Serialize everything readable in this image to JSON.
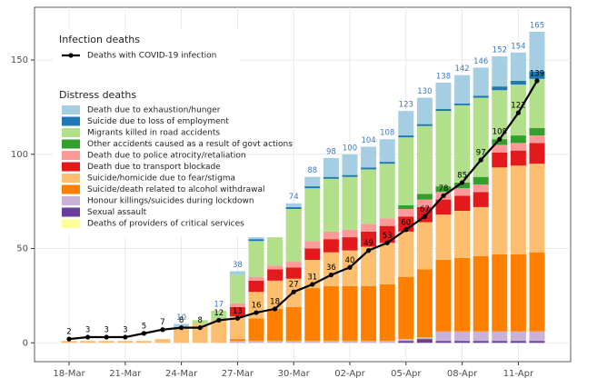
{
  "chart_data": {
    "type": "stacked-bar-line",
    "categories": [
      "18-Mar",
      null,
      null,
      "21-Mar",
      null,
      null,
      "24-Mar",
      null,
      null,
      "27-Mar",
      null,
      null,
      "30-Mar",
      null,
      null,
      "02-Apr",
      null,
      null,
      "05-Apr",
      null,
      null,
      "08-Apr",
      null,
      null,
      "11-Apr",
      null
    ],
    "legend_titles": [
      "Infection deaths",
      "Distress deaths"
    ],
    "line": {
      "name": "Deaths with COVID-19 infection",
      "color": "#000000",
      "values": [
        2,
        3,
        3,
        3,
        5,
        7,
        8,
        8,
        12,
        13,
        16,
        18,
        27,
        31,
        36,
        40,
        49,
        53,
        60,
        67,
        78,
        85,
        97,
        108,
        122,
        139
      ]
    },
    "series": [
      {
        "name": "Death due to exhaustion/hunger",
        "color": "#a6cee3",
        "values": [
          0,
          0,
          0,
          0,
          0,
          0,
          2,
          0,
          0,
          2,
          1,
          0,
          2,
          5,
          10,
          11,
          11,
          12,
          13,
          14,
          14,
          15,
          15,
          16,
          15,
          21
        ]
      },
      {
        "name": "Suicide due to loss of employment",
        "color": "#1f78b4",
        "values": [
          0,
          0,
          0,
          0,
          0,
          0,
          0,
          0,
          0,
          0,
          1,
          0,
          1,
          1,
          1,
          1,
          1,
          1,
          1,
          1,
          1,
          1,
          1,
          2,
          2,
          4
        ]
      },
      {
        "name": "Migrants killed in road accidents",
        "color": "#b2df8a",
        "values": [
          0,
          0,
          0,
          0,
          0,
          0,
          0,
          2,
          5,
          15,
          19,
          15,
          28,
          28,
          28,
          28,
          29,
          29,
          36,
          36,
          40,
          41,
          42,
          26,
          27,
          26
        ]
      },
      {
        "name": "Other accidents caused as a result of govt actions",
        "color": "#33a02c",
        "values": [
          0,
          0,
          0,
          0,
          0,
          0,
          0,
          0,
          0,
          0,
          0,
          0,
          0,
          0,
          0,
          0,
          0,
          0,
          2,
          3,
          3,
          3,
          4,
          3,
          4,
          4
        ]
      },
      {
        "name": "Death due to police atrocity/retaliation",
        "color": "#fb9a99",
        "values": [
          0,
          0,
          0,
          0,
          0,
          0,
          0,
          0,
          0,
          2,
          2,
          2,
          3,
          4,
          4,
          4,
          4,
          4,
          4,
          4,
          4,
          4,
          4,
          4,
          4,
          4
        ]
      },
      {
        "name": "Death due to transport blockade",
        "color": "#e31a1c",
        "values": [
          0,
          0,
          0,
          0,
          0,
          0,
          0,
          0,
          0,
          5,
          6,
          6,
          6,
          6,
          7,
          7,
          8,
          9,
          8,
          8,
          8,
          8,
          8,
          8,
          8,
          11
        ]
      },
      {
        "name": "Suicide/homicide due to fear/stigma",
        "color": "#fdbf6f",
        "values": [
          1,
          1,
          1,
          1,
          1,
          2,
          8,
          10,
          12,
          12,
          14,
          15,
          15,
          15,
          18,
          19,
          21,
          22,
          24,
          25,
          24,
          25,
          26,
          46,
          47,
          47
        ]
      },
      {
        "name": "Suicide/death related to alcohol withdrawal",
        "color": "#ff7f00",
        "values": [
          0,
          0,
          0,
          0,
          0,
          0,
          0,
          0,
          0,
          1,
          12,
          17,
          18,
          28,
          29,
          29,
          29,
          30,
          33,
          36,
          38,
          39,
          40,
          41,
          41,
          42
        ]
      },
      {
        "name": "Honour killings/suicides during lockdown",
        "color": "#cab2d6",
        "values": [
          0,
          0,
          0,
          0,
          0,
          0,
          0,
          0,
          0,
          1,
          1,
          1,
          1,
          1,
          1,
          1,
          1,
          1,
          1,
          1,
          5,
          5,
          5,
          5,
          5,
          5
        ]
      },
      {
        "name": "Sexual assault",
        "color": "#6a3d9a",
        "values": [
          0,
          0,
          0,
          0,
          0,
          0,
          0,
          0,
          0,
          0,
          0,
          0,
          0,
          0,
          0,
          0,
          0,
          0,
          1,
          2,
          1,
          1,
          1,
          1,
          1,
          1
        ]
      },
      {
        "name": "Deaths of providers of critical services",
        "color": "#ffff99",
        "values": [
          0,
          0,
          0,
          0,
          0,
          0,
          0,
          0,
          0,
          0,
          0,
          0,
          0,
          0,
          0,
          0,
          0,
          0,
          0,
          0,
          0,
          0,
          0,
          0,
          0,
          0
        ]
      }
    ],
    "totals": [
      null,
      null,
      null,
      null,
      null,
      null,
      10,
      null,
      17,
      38,
      null,
      null,
      74,
      88,
      98,
      100,
      104,
      108,
      123,
      130,
      138,
      142,
      146,
      152,
      154,
      165
    ],
    "ylim": [
      -10,
      178
    ],
    "yticks": [
      0,
      50,
      100,
      150
    ],
    "grid": true
  }
}
